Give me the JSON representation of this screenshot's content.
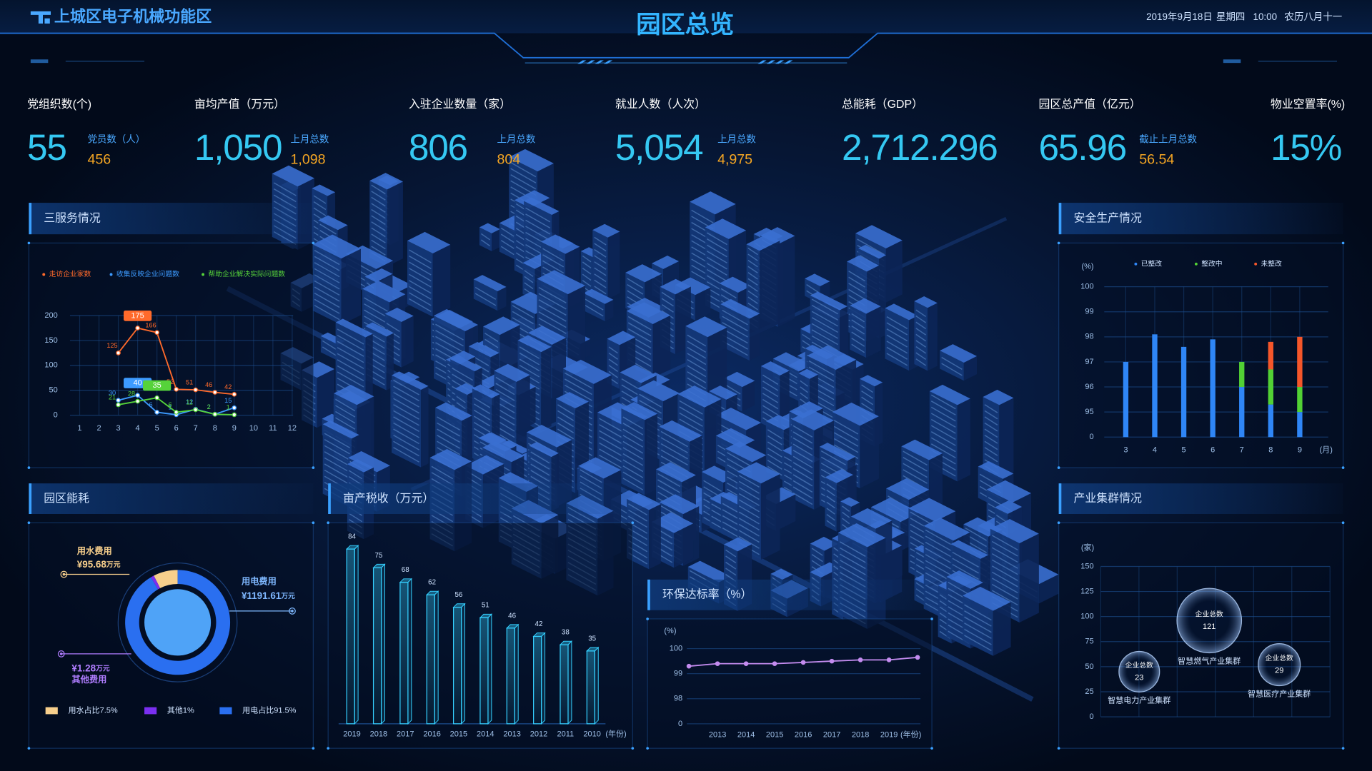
{
  "header": {
    "logo": "上城区电子机械功能区",
    "title": "园区总览",
    "date": "2019年9月18日",
    "weekday": "星期四",
    "time": "10:00",
    "lunar": "农历八月十一"
  },
  "kpis": [
    {
      "label": "党组织数(个)",
      "value": "55",
      "sub_label": "党员数（人）",
      "sub_value": "456"
    },
    {
      "label": "亩均产值（万元）",
      "value": "1,050",
      "sub_label": "上月总数",
      "sub_value": "1,098"
    },
    {
      "label": "入驻企业数量（家）",
      "value": "806",
      "sub_label": "上月总数",
      "sub_value": "804"
    },
    {
      "label": "就业人数（人次）",
      "value": "5,054",
      "sub_label": "上月总数",
      "sub_value": "4,975"
    },
    {
      "label": "总能耗（GDP）",
      "value": "2,712.296"
    },
    {
      "label": "园区总产值（亿元）",
      "value": "65.96",
      "sub_label": "截止上月总数",
      "sub_value": "56.54"
    },
    {
      "label": "物业空置率(%)",
      "value": "15%"
    }
  ],
  "chart_data": [
    {
      "type": "line",
      "title": "三服务情况",
      "categories": [
        "1",
        "2",
        "3",
        "4",
        "5",
        "6",
        "7",
        "8",
        "9",
        "10",
        "11",
        "12"
      ],
      "ylim": [
        0,
        200
      ],
      "yticks": [
        0,
        50,
        100,
        150,
        200
      ],
      "grid": true,
      "data_labels": true,
      "series": [
        {
          "name": "走访企业家数",
          "color": "#ff6a2b",
          "values": [
            null,
            null,
            125,
            175,
            166,
            52,
            51,
            46,
            42,
            null,
            null,
            null
          ]
        },
        {
          "name": "收集反映企业问题数",
          "color": "#3d9bff",
          "values": [
            null,
            null,
            30,
            40,
            6,
            1,
            12,
            2,
            15,
            null,
            null,
            null
          ]
        },
        {
          "name": "帮助企业解决实际问题数",
          "color": "#56d33a",
          "values": [
            null,
            null,
            21,
            28,
            35,
            6,
            11,
            2,
            1,
            null,
            null,
            null
          ]
        }
      ]
    },
    {
      "type": "bar",
      "stacked": true,
      "title": "安全生产情况",
      "y_unit": "(%)",
      "x_unit": "(月)",
      "categories": [
        "3",
        "4",
        "5",
        "6",
        "7",
        "8",
        "9"
      ],
      "ylim": [
        0,
        100
      ],
      "yticks": [
        0,
        95,
        96,
        97,
        98,
        99,
        100
      ],
      "axis_break": true,
      "grid": true,
      "series": [
        {
          "name": "已整改",
          "color": "#2f86f6",
          "values": [
            97,
            98.1,
            97.6,
            97.9,
            96,
            95.3,
            95
          ]
        },
        {
          "name": "整改中",
          "color": "#52d134",
          "values": [
            null,
            null,
            null,
            null,
            1,
            1.4,
            1
          ]
        },
        {
          "name": "未整改",
          "color": "#f5562a",
          "values": [
            null,
            null,
            null,
            null,
            null,
            1.1,
            2
          ]
        }
      ]
    },
    {
      "type": "pie",
      "title": "园区能耗",
      "items": [
        {
          "name": "用水费用",
          "amount": 95.68,
          "amount_label": "¥95.68",
          "unit": "万元",
          "legend": "用水占比7.5%",
          "share": 7.5,
          "color": "#f7cf8c"
        },
        {
          "name": "其他费用",
          "amount": 1.28,
          "amount_label": "¥1.28",
          "unit": "万元",
          "legend": "其他1%",
          "share": 1,
          "color": "#7a2ff0"
        },
        {
          "name": "用电费用",
          "amount": 1191.61,
          "amount_label": "¥1191.61",
          "unit": "万元",
          "legend": "用电占比91.5%",
          "share": 91.5,
          "color": "#2a6ff0"
        }
      ]
    },
    {
      "type": "bar",
      "title": "亩产税收（万元）",
      "x_unit": "(年份)",
      "data_labels": true,
      "color": "#35d0ff",
      "categories": [
        "2019",
        "2018",
        "2017",
        "2016",
        "2015",
        "2014",
        "2013",
        "2012",
        "2011",
        "2010"
      ],
      "values": [
        84,
        75,
        68,
        62,
        56,
        51,
        46,
        42,
        38,
        35
      ]
    },
    {
      "type": "line",
      "title": "环保达标率（%）",
      "y_unit": "(%)",
      "x_unit": "(年份)",
      "color": "#c48cf0",
      "categories": [
        null,
        "2013",
        "2014",
        "2015",
        "2016",
        "2017",
        "2018",
        "2019",
        null
      ],
      "values": [
        99.3,
        99.4,
        99.4,
        99.4,
        99.45,
        99.5,
        99.55,
        99.55,
        99.65
      ],
      "ylim": [
        0,
        100
      ],
      "yticks": [
        0,
        98,
        99,
        100
      ],
      "axis_break": true,
      "grid": true
    },
    {
      "type": "bubble",
      "title": "产业集群情况",
      "y_unit": "(家)",
      "ylim": [
        0,
        150
      ],
      "yticks": [
        0,
        25,
        50,
        75,
        100,
        125,
        150
      ],
      "grid": true,
      "categories": [
        "智慧电力产业集群",
        "智慧燃气产业集群",
        "智慧医疗产业集群"
      ],
      "values": [
        45,
        96,
        52
      ],
      "sizes": [
        23,
        121,
        29
      ],
      "bubble_label": "企业总数"
    }
  ]
}
